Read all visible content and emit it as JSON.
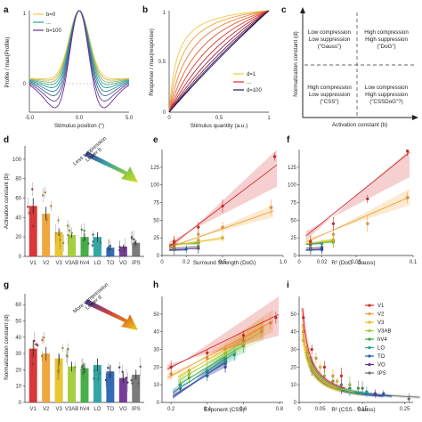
{
  "panels": {
    "a": "a",
    "b": "b",
    "c": "c",
    "d": "d",
    "e": "e",
    "f": "f",
    "g": "g",
    "h": "h",
    "i": "i"
  },
  "panel_a": {
    "xlabel": "Stimulus position (°)",
    "ylabel": "Profile / max(Profile)",
    "xticks": [
      "-5.0",
      "0.0",
      "5.0"
    ],
    "yticks": [
      "0",
      "1"
    ],
    "legend": [
      "b=0",
      "...",
      "b=100"
    ]
  },
  "panel_b": {
    "xlabel": "Stimulus quantity (a.u.)",
    "ylabel": "Response / max(response)",
    "xticks": [
      "0",
      "0.5",
      "1"
    ],
    "yticks": [
      "0",
      "0.5",
      "1"
    ],
    "legend": [
      "d=1",
      "...",
      "d=100"
    ]
  },
  "panel_c": {
    "xlabel": "Activation constant (b)",
    "ylabel": "Normalization constant (d)",
    "quadrants": [
      [
        "Low compression",
        "Low suppression",
        "(\"Gauss\")"
      ],
      [
        "High compression",
        "High suppression",
        "(\"DoG\")"
      ],
      [
        "High compression",
        "Low suppression",
        "(\"CSS\")"
      ],
      [
        "Low compression",
        "High suppression",
        "(\"CSSDoG\"?)"
      ]
    ]
  },
  "panel_d": {
    "ylabel": "Activation constant (b)",
    "yticks": [
      "0",
      "20",
      "40",
      "60",
      "80",
      "100"
    ],
    "arrow_text": [
      "Lower b",
      "Less suppression"
    ]
  },
  "panel_g": {
    "ylabel": "Normalization constant (d)",
    "yticks": [
      "0",
      "10",
      "20",
      "30",
      "40",
      "50",
      "60"
    ],
    "arrow_text": [
      "Lower d",
      "More compression"
    ]
  },
  "panel_e": {
    "xlabel": "Surround Strength (DoG)",
    "xticks": [
      "0",
      "0.2",
      "0.5",
      "1.0"
    ],
    "yticks": [
      "0",
      "25",
      "50",
      "75",
      "100",
      "125"
    ]
  },
  "panel_f": {
    "xlabel": "R² (DoG - Gauss)",
    "xticks": [
      "0",
      "0.02",
      "0.05",
      "0.1"
    ],
    "yticks": [
      "0",
      "25",
      "50",
      "75",
      "100",
      "125"
    ]
  },
  "panel_h": {
    "xlabel": "Exponent (CSS)",
    "xticks": [
      "0.2",
      "0.4",
      "0.6",
      "0.8"
    ],
    "yticks": [
      "0",
      "10",
      "20",
      "30",
      "40",
      "50"
    ]
  },
  "panel_i": {
    "xlabel": "R² (CSS - Gauss)",
    "xticks": [
      "0",
      "0.05",
      "0.15",
      "0.25"
    ],
    "yticks": [
      "0",
      "10",
      "20",
      "30",
      "40",
      "50"
    ]
  },
  "roi_legend": [
    "V1",
    "V2",
    "V3",
    "V3AB",
    "hV4",
    "LO",
    "TO",
    "VO",
    "IPS"
  ],
  "colors": {
    "rois": [
      "#d62728",
      "#f0a030",
      "#e8c020",
      "#9ccc30",
      "#38a838",
      "#20a0a0",
      "#2060b0",
      "#6a2c90",
      "#707070"
    ],
    "line_hi": "#f5c542",
    "line_lo": "#3a2a80",
    "arrow_d": [
      "#3a3aa0",
      "#3aa0a0",
      "#8ccc40",
      "#d8d820"
    ],
    "arrow_g": [
      "#3a3aa0",
      "#d04040",
      "#e08020",
      "#f0d020"
    ]
  },
  "chart_data": [
    {
      "type": "line",
      "title": "",
      "xlabel": "Stimulus position (°)",
      "ylabel": "Profile / max(Profile)",
      "xlim": [
        -5,
        5
      ],
      "ylim": [
        -0.5,
        1
      ],
      "series": [
        {
          "name": "b=0",
          "b": 0
        },
        {
          "name": "b=100",
          "b": 100
        }
      ]
    },
    {
      "type": "line",
      "title": "",
      "xlabel": "Stimulus quantity (a.u.)",
      "ylabel": "Response / max(response)",
      "xlim": [
        0,
        1
      ],
      "ylim": [
        0,
        1
      ],
      "series": [
        {
          "name": "d=1",
          "d": 1
        },
        {
          "name": "d=100",
          "d": 100
        }
      ]
    },
    {
      "type": "bar",
      "title": "",
      "ylabel": "Activation constant (b)",
      "categories": [
        "V1",
        "V2",
        "V3",
        "V3AB",
        "hV4",
        "LO",
        "TO",
        "VO",
        "IPS"
      ],
      "values": [
        52,
        44,
        25,
        22,
        20,
        20,
        9,
        10,
        14
      ],
      "errors": [
        8,
        7,
        4,
        3,
        4,
        5,
        2,
        2,
        3
      ],
      "ylim": [
        0,
        110
      ]
    },
    {
      "type": "bar",
      "title": "",
      "ylabel": "Normalization constant (d)",
      "categories": [
        "V1",
        "V2",
        "V3",
        "V3AB",
        "hV4",
        "LO",
        "TO",
        "VO",
        "IPS"
      ],
      "values": [
        33,
        30,
        27,
        22,
        21,
        23,
        19,
        15,
        17
      ],
      "errors": [
        5,
        4,
        3,
        3,
        3,
        4,
        4,
        3,
        3
      ],
      "ylim": [
        0,
        65
      ]
    },
    {
      "type": "scatter",
      "title": "",
      "xlabel": "Surround Strength (DoG)",
      "xlim": [
        0,
        1.0
      ],
      "ylim": [
        0,
        150
      ],
      "series": [
        {
          "name": "V1",
          "slope": 130,
          "intercept": 5,
          "x": [
            0.1,
            0.3,
            0.5,
            0.93
          ],
          "y": [
            20,
            40,
            70,
            140
          ]
        },
        {
          "name": "V2",
          "slope": 60,
          "intercept": 8,
          "x": [
            0.1,
            0.3,
            0.5,
            0.9
          ],
          "y": [
            15,
            30,
            40,
            68
          ]
        },
        {
          "name": "V3",
          "slope": 25,
          "intercept": 12,
          "x": [
            0.1,
            0.3,
            0.5
          ],
          "y": [
            18,
            22,
            25
          ]
        },
        {
          "name": "V3AB",
          "slope": 12,
          "intercept": 14,
          "x": [
            0.1,
            0.3
          ],
          "y": [
            16,
            20
          ]
        },
        {
          "name": "hV4",
          "slope": 10,
          "intercept": 15,
          "x": [
            0.1,
            0.3
          ],
          "y": [
            17,
            18
          ]
        },
        {
          "name": "LO",
          "slope": 8,
          "intercept": 15,
          "x": [
            0.1,
            0.3
          ],
          "y": [
            16,
            18
          ]
        },
        {
          "name": "TO",
          "slope": 4,
          "intercept": 7,
          "x": [
            0.1,
            0.2
          ],
          "y": [
            8,
            9
          ]
        },
        {
          "name": "VO",
          "slope": 6,
          "intercept": 8,
          "x": [
            0.1,
            0.3
          ],
          "y": [
            9,
            10
          ]
        },
        {
          "name": "IPS",
          "slope": 8,
          "intercept": 10,
          "x": [
            0.1,
            0.3
          ],
          "y": [
            12,
            13
          ]
        }
      ]
    },
    {
      "type": "scatter",
      "title": "",
      "xlabel": "R² (DoG - Gauss)",
      "xlim": [
        0,
        0.1
      ],
      "ylim": [
        0,
        150
      ],
      "series": [
        {
          "name": "V1",
          "slope": 1300,
          "intercept": 20,
          "x": [
            0.01,
            0.03,
            0.06,
            0.095
          ],
          "y": [
            20,
            45,
            80,
            148
          ]
        },
        {
          "name": "V2",
          "slope": 700,
          "intercept": 15,
          "x": [
            0.01,
            0.03,
            0.06,
            0.095
          ],
          "y": [
            18,
            30,
            45,
            82
          ]
        },
        {
          "name": "V3",
          "slope": 250,
          "intercept": 15,
          "x": [
            0.01,
            0.03
          ],
          "y": [
            18,
            22
          ]
        },
        {
          "name": "V3AB",
          "slope": 150,
          "intercept": 16,
          "x": [
            0.01,
            0.03
          ],
          "y": [
            17,
            20
          ]
        },
        {
          "name": "hV4",
          "slope": 120,
          "intercept": 16,
          "x": [
            0.01,
            0.03
          ],
          "y": [
            16,
            19
          ]
        },
        {
          "name": "LO",
          "slope": 100,
          "intercept": 15,
          "x": [
            0.01,
            0.02
          ],
          "y": [
            15,
            17
          ]
        },
        {
          "name": "TO",
          "slope": 50,
          "intercept": 7,
          "x": [
            0.01,
            0.02
          ],
          "y": [
            8,
            8
          ]
        },
        {
          "name": "VO",
          "slope": 60,
          "intercept": 8,
          "x": [
            0.01,
            0.02
          ],
          "y": [
            9,
            10
          ]
        },
        {
          "name": "IPS",
          "slope": 80,
          "intercept": 10,
          "x": [
            0.01,
            0.02
          ],
          "y": [
            11,
            12
          ]
        }
      ]
    },
    {
      "type": "scatter",
      "title": "",
      "xlabel": "Exponent (CSS)",
      "xlim": [
        0.15,
        0.82
      ],
      "ylim": [
        0,
        60
      ],
      "series": [
        {
          "name": "V1",
          "slope": 50,
          "intercept": 10,
          "x": [
            0.2,
            0.4,
            0.6,
            0.78
          ],
          "y": [
            20,
            28,
            38,
            48
          ]
        },
        {
          "name": "V2",
          "slope": 55,
          "intercept": 4,
          "x": [
            0.2,
            0.4,
            0.6,
            0.75
          ],
          "y": [
            16,
            25,
            35,
            45
          ]
        },
        {
          "name": "V3",
          "slope": 60,
          "intercept": 0,
          "x": [
            0.3,
            0.5,
            0.7
          ],
          "y": [
            18,
            30,
            42
          ]
        },
        {
          "name": "V3AB",
          "slope": 60,
          "intercept": -2,
          "x": [
            0.3,
            0.5,
            0.7
          ],
          "y": [
            16,
            28,
            40
          ]
        },
        {
          "name": "hV4",
          "slope": 62,
          "intercept": -5,
          "x": [
            0.3,
            0.5,
            0.6
          ],
          "y": [
            14,
            25,
            32
          ]
        },
        {
          "name": "LO",
          "slope": 65,
          "intercept": -8,
          "x": [
            0.25,
            0.4,
            0.55
          ],
          "y": [
            10,
            18,
            27
          ]
        },
        {
          "name": "TO",
          "slope": 70,
          "intercept": -12,
          "x": [
            0.25,
            0.4,
            0.5
          ],
          "y": [
            8,
            15,
            22
          ]
        },
        {
          "name": "VO",
          "slope": 65,
          "intercept": -10,
          "x": [
            0.25,
            0.4,
            0.5
          ],
          "y": [
            8,
            15,
            20
          ]
        },
        {
          "name": "IPS",
          "slope": 65,
          "intercept": -8,
          "x": [
            0.25,
            0.4,
            0.5
          ],
          "y": [
            10,
            17,
            24
          ]
        }
      ]
    },
    {
      "type": "scatter",
      "title": "",
      "xlabel": "R² (CSS - Gauss)",
      "xlim": [
        0,
        0.27
      ],
      "ylim": [
        0,
        60
      ],
      "series": [
        {
          "name": "V1",
          "x": [
            0.01,
            0.03,
            0.06,
            0.1
          ],
          "y": [
            48,
            30,
            20,
            15
          ]
        },
        {
          "name": "V2",
          "x": [
            0.01,
            0.04,
            0.08
          ],
          "y": [
            40,
            25,
            15
          ]
        },
        {
          "name": "V3",
          "x": [
            0.01,
            0.05,
            0.09
          ],
          "y": [
            35,
            20,
            12
          ]
        },
        {
          "name": "V3AB",
          "x": [
            0.02,
            0.06,
            0.12
          ],
          "y": [
            28,
            15,
            10
          ]
        },
        {
          "name": "hV4",
          "x": [
            0.02,
            0.08,
            0.14
          ],
          "y": [
            25,
            12,
            8
          ]
        },
        {
          "name": "LO",
          "x": [
            0.03,
            0.1,
            0.16
          ],
          "y": [
            22,
            10,
            6
          ]
        },
        {
          "name": "TO",
          "x": [
            0.03,
            0.12,
            0.2
          ],
          "y": [
            20,
            8,
            5
          ]
        },
        {
          "name": "VO",
          "x": [
            0.03,
            0.1,
            0.18
          ],
          "y": [
            18,
            8,
            5
          ]
        },
        {
          "name": "IPS",
          "x": [
            0.03,
            0.15,
            0.26
          ],
          "y": [
            22,
            8,
            2
          ]
        }
      ]
    }
  ]
}
